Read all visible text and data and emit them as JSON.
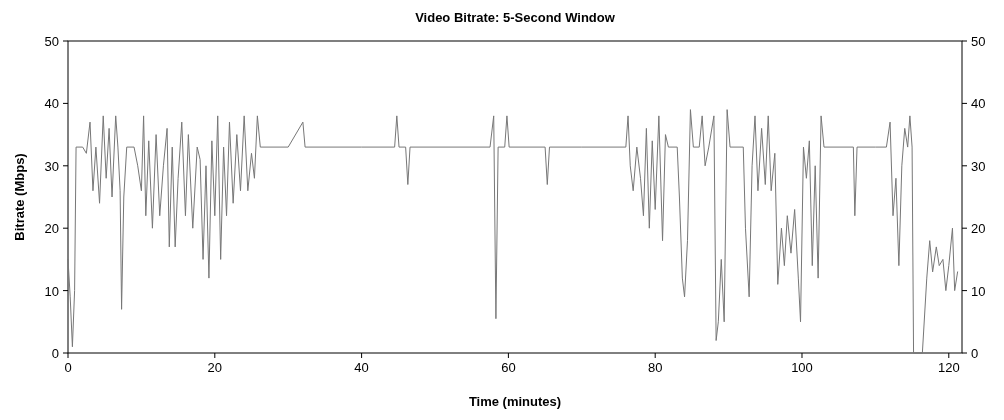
{
  "chart_data": {
    "type": "line",
    "title": "Video Bitrate: 5-Second Window",
    "xlabel": "Time (minutes)",
    "ylabel": "Bitrate (Mbps)",
    "xlim": [
      0,
      121.8
    ],
    "xticks": [
      0,
      20,
      40,
      60,
      80,
      100,
      120
    ],
    "ylim": [
      0,
      50
    ],
    "yticks": [
      0,
      10,
      20,
      30,
      40,
      50
    ],
    "y2lim": [
      0,
      50
    ],
    "y2ticks": [
      0,
      10,
      20,
      30,
      40,
      50
    ],
    "grid": false,
    "series": [
      {
        "color": "#777777",
        "x": [
          0,
          0.3,
          0.6,
          0.9,
          1.1,
          2,
          2.5,
          3,
          3.4,
          3.8,
          4.3,
          4.8,
          5.2,
          5.6,
          6,
          6.5,
          6.8,
          7.1,
          7.3,
          7.6,
          8,
          9,
          9.5,
          10,
          10.3,
          10.6,
          11,
          11.5,
          12,
          12.5,
          13,
          13.5,
          13.8,
          14.2,
          14.6,
          15,
          15.5,
          16,
          16.4,
          17,
          17.6,
          18,
          18.4,
          18.8,
          19.2,
          19.6,
          20,
          20.4,
          20.8,
          21.2,
          21.6,
          22,
          22.5,
          23,
          23.5,
          24,
          24.5,
          25,
          25.4,
          25.8,
          26.2,
          30,
          32,
          32.3,
          40,
          44.5,
          44.8,
          45.1,
          46,
          46.3,
          46.6,
          50,
          57.5,
          58,
          58.3,
          58.6,
          59.5,
          59.8,
          60.1,
          65,
          65.3,
          65.6,
          70,
          76,
          76.3,
          76.6,
          77,
          77.5,
          78,
          78.4,
          78.8,
          79.2,
          79.6,
          80,
          80.5,
          81,
          81.4,
          81.8,
          83,
          83.3,
          83.7,
          84,
          84.4,
          84.8,
          85.2,
          86,
          86.4,
          86.8,
          87.3,
          88,
          88.3,
          88.6,
          89,
          89.4,
          89.8,
          90.2,
          92,
          92.3,
          92.8,
          93.2,
          93.6,
          94,
          94.5,
          95,
          95.4,
          95.8,
          96.3,
          96.7,
          97.2,
          97.6,
          98,
          98.5,
          99,
          99.5,
          99.8,
          100.2,
          100.6,
          101,
          101.4,
          101.8,
          102.2,
          102.6,
          103,
          107,
          107.2,
          107.5,
          110,
          111.5,
          112,
          112.4,
          112.8,
          113.2,
          113.6,
          114,
          114.4,
          114.7,
          115,
          115.2,
          116.4,
          117,
          117.4,
          117.8,
          118.3,
          118.7,
          119.2,
          119.6,
          120,
          120.5,
          120.8,
          121.2
        ],
        "values": [
          15,
          9,
          1,
          10,
          33,
          33,
          32,
          37,
          26,
          33,
          24,
          38,
          28,
          36,
          25,
          38,
          33,
          26,
          7,
          25,
          33,
          33,
          30,
          26,
          38,
          22,
          34,
          20,
          35,
          22,
          30,
          36,
          17,
          33,
          17,
          28,
          37,
          22,
          35,
          20,
          33,
          31,
          15,
          30,
          12,
          34,
          22,
          38,
          15,
          33,
          22,
          37,
          24,
          35,
          26,
          38,
          26,
          32,
          28,
          38,
          33,
          33,
          37,
          33,
          33,
          33,
          38,
          33,
          33,
          27,
          33,
          33,
          33,
          38,
          5.5,
          33,
          33,
          38,
          33,
          33,
          27,
          33,
          33,
          33,
          38,
          30,
          26,
          33,
          28,
          22,
          36,
          20,
          34,
          23,
          38,
          18,
          35,
          33,
          33,
          25,
          12,
          9,
          18,
          39,
          33,
          33,
          38,
          30,
          33,
          38,
          2,
          5,
          15,
          5,
          39,
          33,
          33,
          20,
          9,
          30,
          38,
          26,
          36,
          27,
          38,
          26,
          32,
          11,
          20,
          14,
          22,
          16,
          23,
          12,
          5,
          33,
          28,
          34,
          14,
          30,
          12,
          38,
          33,
          33,
          22,
          33,
          33,
          33,
          37,
          22,
          28,
          14,
          30,
          36,
          33,
          38,
          33,
          0,
          0,
          12,
          18,
          13,
          17,
          14,
          15,
          10,
          14,
          20,
          10,
          13
        ]
      }
    ]
  }
}
